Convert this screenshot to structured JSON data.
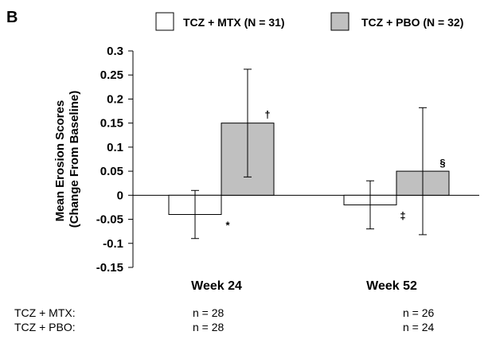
{
  "panel_label": "B",
  "colors": {
    "tcz_mtx": "#ffffff",
    "tcz_pbo": "#c0c0c0",
    "stroke": "#000000"
  },
  "chart_data": {
    "type": "bar",
    "ylabel": [
      "Mean Erosion Scores",
      "(Change From Baseline)"
    ],
    "ylim": [
      -0.15,
      0.3
    ],
    "yticks": [
      {
        "value": 0.3,
        "label": "0.3"
      },
      {
        "value": 0.25,
        "label": "0.25"
      },
      {
        "value": 0.2,
        "label": "0.2"
      },
      {
        "value": 0.15,
        "label": "0.15"
      },
      {
        "value": 0.1,
        "label": "0.1"
      },
      {
        "value": 0.05,
        "label": "0.05"
      },
      {
        "value": 0,
        "label": "0"
      },
      {
        "value": -0.05,
        "label": "-0.05"
      },
      {
        "value": -0.1,
        "label": "-0.1"
      },
      {
        "value": -0.15,
        "label": "-0.15"
      }
    ],
    "categories": [
      "Week 24",
      "Week 52"
    ],
    "legend_position": "top",
    "grid": false,
    "series": [
      {
        "name": "TCZ + MTX (N = 31)",
        "values": [
          -0.04,
          -0.02
        ],
        "error_low": [
          -0.09,
          -0.07
        ],
        "error_high": [
          0.01,
          0.03
        ],
        "markers": [
          "*",
          "‡"
        ],
        "n_label": "TCZ + MTX:",
        "n_values": [
          "n = 28",
          "n = 26"
        ]
      },
      {
        "name": "TCZ + PBO (N = 32)",
        "values": [
          0.15,
          0.05
        ],
        "error_low": [
          0.038,
          -0.082
        ],
        "error_high": [
          0.262,
          0.182
        ],
        "markers": [
          "†",
          "§"
        ],
        "n_label": "TCZ + PBO:",
        "n_values": [
          "n = 28",
          "n = 24"
        ]
      }
    ]
  }
}
